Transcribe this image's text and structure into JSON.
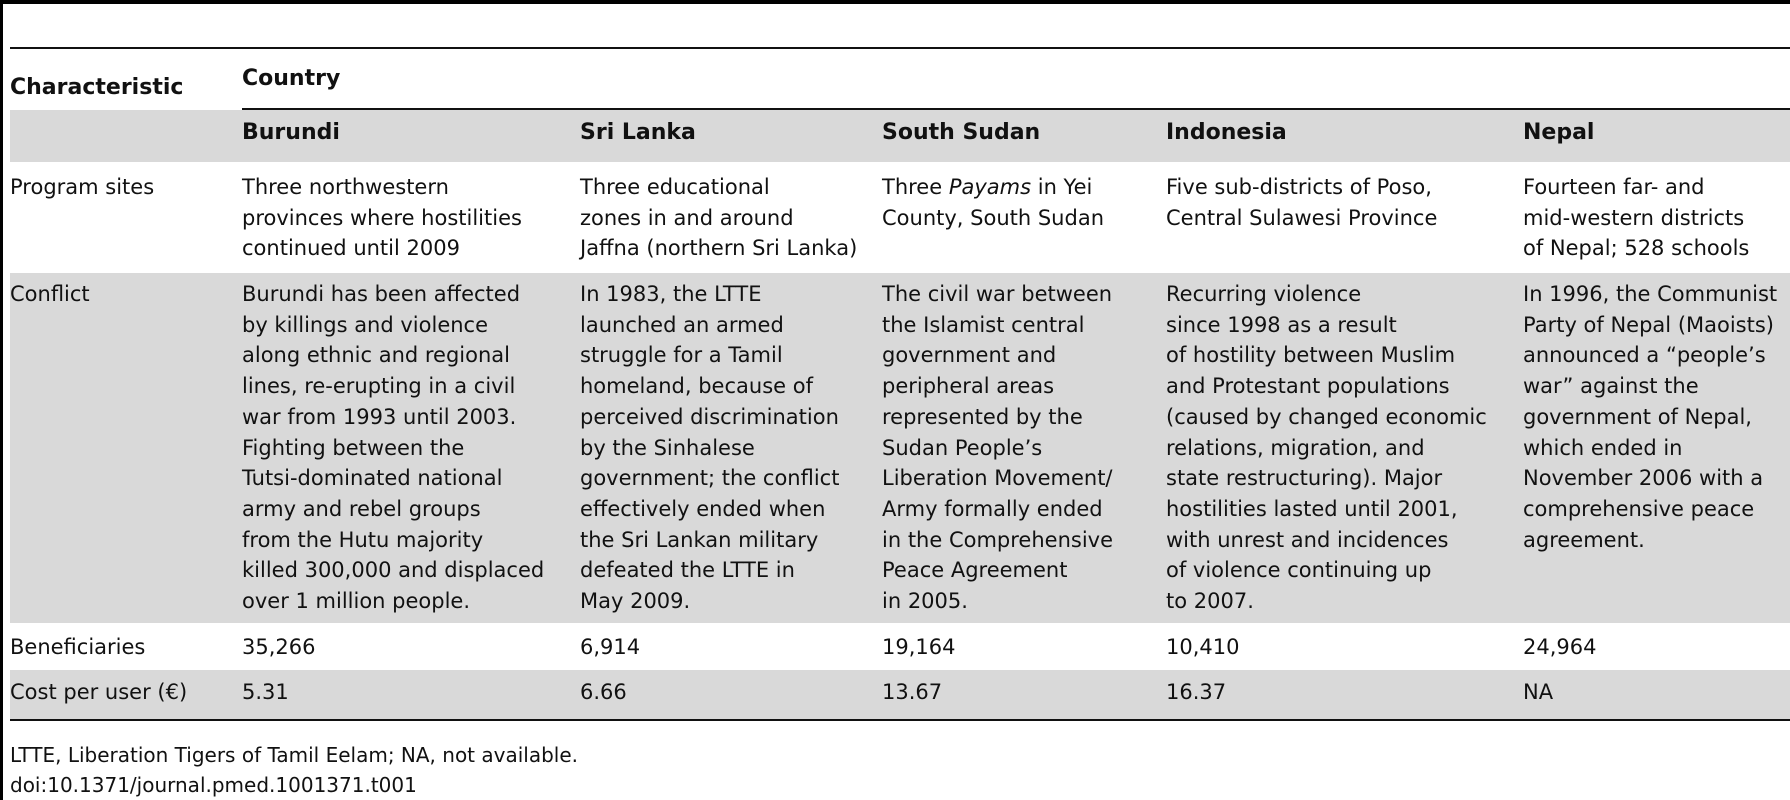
{
  "table": {
    "stub_header": "Characteristic",
    "group_header": "Country",
    "columns": [
      "Burundi",
      "Sri Lanka",
      "South Sudan",
      "Indonesia",
      "Nepal"
    ],
    "rows": [
      {
        "label": "Program sites",
        "cells": [
          "Three northwestern\nprovinces where hostilities\ncontinued until 2009",
          "Three educational\nzones in and around\nJaffna (northern Sri Lanka)",
          "Three Payams in Yei\nCounty, South Sudan",
          "Five sub-districts of Poso,\nCentral Sulawesi Province",
          "Fourteen far- and\nmid-western districts\nof Nepal; 528 schools"
        ]
      },
      {
        "label": "Conflict",
        "cells": [
          "Burundi has been affected\nby killings and violence\nalong ethnic and regional\nlines, re-erupting in a civil\nwar from 1993 until 2003.\nFighting between the\nTutsi-dominated national\narmy and rebel groups\nfrom the Hutu majority\nkilled 300,000 and displaced\nover 1 million people.",
          "In 1983, the LTTE\nlaunched an armed\nstruggle for a Tamil\nhomeland, because of\nperceived discrimination\nby the Sinhalese\ngovernment; the conflict\neffectively ended when\nthe Sri Lankan military\ndefeated the LTTE in\nMay 2009.",
          "The civil war between\nthe Islamist central\ngovernment and\nperipheral areas\nrepresented by the\nSudan People’s\nLiberation Movement/\nArmy formally ended\nin the Comprehensive\nPeace Agreement\nin 2005.",
          "Recurring violence\nsince 1998 as a result\nof hostility between Muslim\nand Protestant populations\n(caused by changed economic\nrelations, migration, and\nstate restructuring). Major\nhostilities lasted until 2001,\nwith unrest and incidences\nof violence continuing up\nto 2007.",
          "In 1996, the Communist\nParty of Nepal (Maoists)\nannounced a “people’s\nwar” against the\ngovernment of Nepal,\nwhich ended in\nNovember 2006 with a\ncomprehensive peace\nagreement."
        ]
      },
      {
        "label": "Beneficiaries",
        "cells": [
          "35,266",
          "6,914",
          "19,164",
          "10,410",
          "24,964"
        ]
      },
      {
        "label": "Cost per user (€)",
        "cells": [
          "5.31",
          "6.66",
          "13.67",
          "16.37",
          "NA"
        ]
      }
    ]
  },
  "footnote": "LTTE, Liberation Tigers of Tamil Eelam; NA, not available.",
  "doi": "doi:10.1371/journal.pmed.1001371.t001"
}
